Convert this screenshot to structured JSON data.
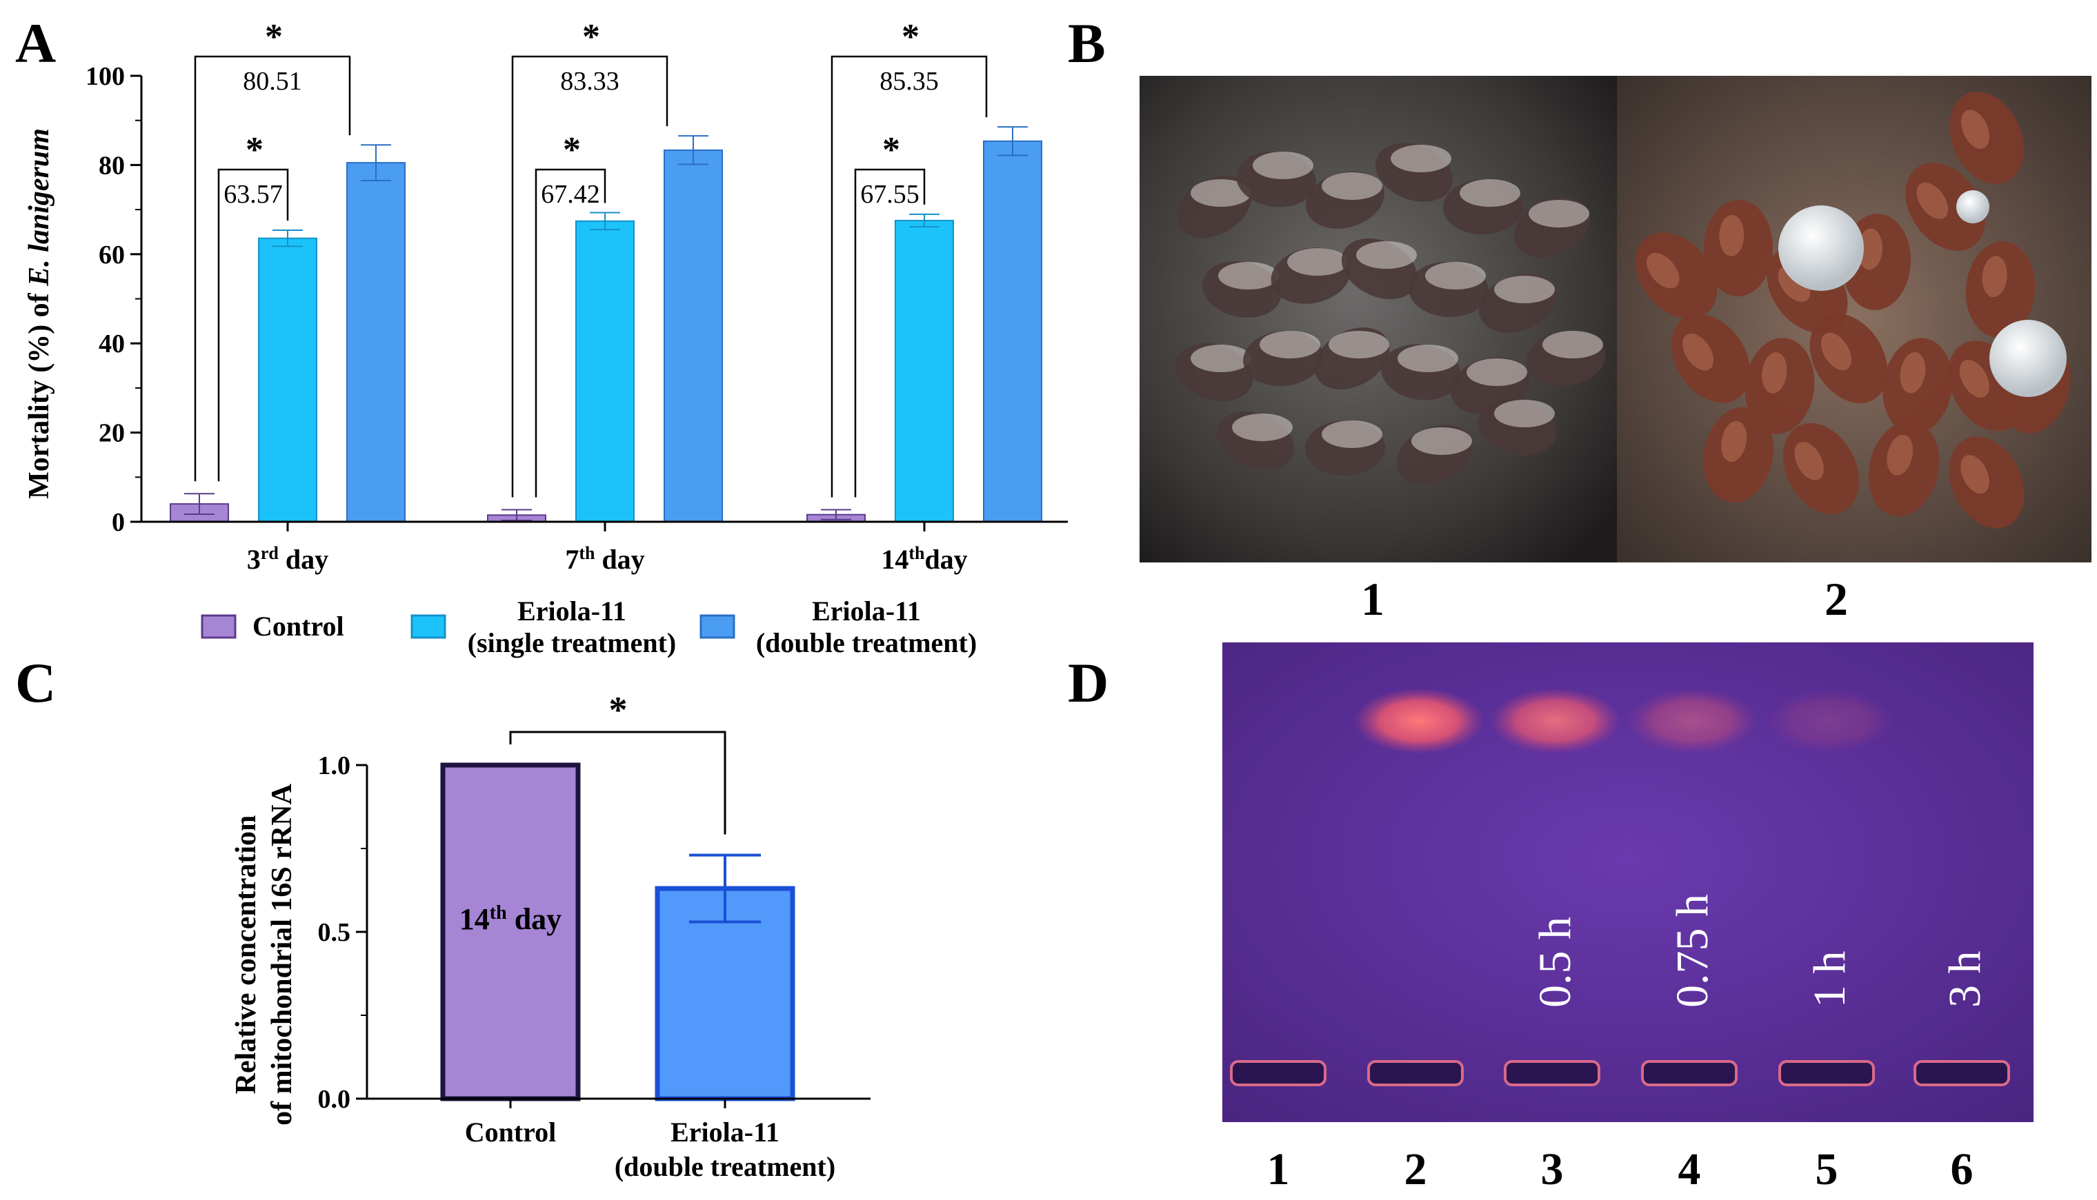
{
  "panel_labels": {
    "a": "A",
    "b": "B",
    "c": "C",
    "d": "D"
  },
  "colors": {
    "control": "#A585D4",
    "control_border": "#5E3A8C",
    "single": "#1CC3FA",
    "single_border": "#1590C8",
    "double": "#4A9DF2",
    "double_border": "#2A6FC4",
    "control_c": "#A585D4",
    "control_c_border": "#1E1440",
    "double_c": "#5199FA",
    "double_c_border": "#1A4FD6",
    "axis": "#000000",
    "gel_bg": "#5E2E9A",
    "band": "#FF6A6A",
    "gel_text": "#FFFFFF"
  },
  "legend": {
    "control": "Control",
    "single_line1": "Eriola-11",
    "single_line2": "(single treatment)",
    "double_line1": "Eriola-11",
    "double_line2": "(double treatment)"
  },
  "chart_data": [
    {
      "panel": "A",
      "type": "bar",
      "ylabel_main": "Mortality (%) of ",
      "ylabel_italic": "E. lanigerum",
      "ylim": [
        0,
        100
      ],
      "yticks": [
        "0",
        "20",
        "40",
        "60",
        "80",
        "100"
      ],
      "categories": [
        {
          "num": "3",
          "sup": "rd",
          "rest": " day"
        },
        {
          "num": "7",
          "sup": "th",
          "rest": " day"
        },
        {
          "num": "14",
          "sup": "th",
          "rest": "day"
        }
      ],
      "series": [
        {
          "name": "Control",
          "values": [
            4.0,
            1.5,
            1.6
          ],
          "errors": [
            2.3,
            1.2,
            1.1
          ]
        },
        {
          "name": "Eriola-11 (single treatment)",
          "values": [
            63.57,
            67.42,
            67.55
          ],
          "errors": [
            1.8,
            1.9,
            1.4
          ]
        },
        {
          "name": "Eriola-11 (double treatment)",
          "values": [
            80.51,
            83.33,
            85.35
          ],
          "errors": [
            4.0,
            3.2,
            3.2
          ]
        }
      ],
      "annotations": {
        "single_vs_control": [
          "63.57",
          "67.42",
          "67.55"
        ],
        "double_vs_control": [
          "80.51",
          "83.33",
          "85.35"
        ],
        "significance": "*"
      }
    },
    {
      "panel": "C",
      "type": "bar",
      "ylabel_line1": "Relative concentration",
      "ylabel_line2": "of mitochondrial 16S rRNA",
      "ylim": [
        0,
        1.0
      ],
      "yticks": [
        "0.0",
        "0.5",
        "1.0"
      ],
      "categories": [
        {
          "line1": "Control",
          "line2": ""
        },
        {
          "line1": "Eriola-11",
          "line2": "(double treatment)"
        }
      ],
      "values": [
        1.0,
        0.63
      ],
      "errors": [
        0,
        0.1
      ],
      "inner_label": {
        "num": "14",
        "sup": "th",
        "rest": " day"
      },
      "significance": "*"
    }
  ],
  "panel_b": {
    "labels": [
      "1",
      "2"
    ]
  },
  "panel_d": {
    "lanes": [
      "1",
      "2",
      "3",
      "4",
      "5",
      "6"
    ],
    "times": [
      "",
      "",
      "0.5 h",
      "0.75 h",
      "1 h",
      "3 h"
    ],
    "band_intensity": [
      0,
      1.0,
      0.85,
      0.45,
      0.2,
      0
    ]
  }
}
